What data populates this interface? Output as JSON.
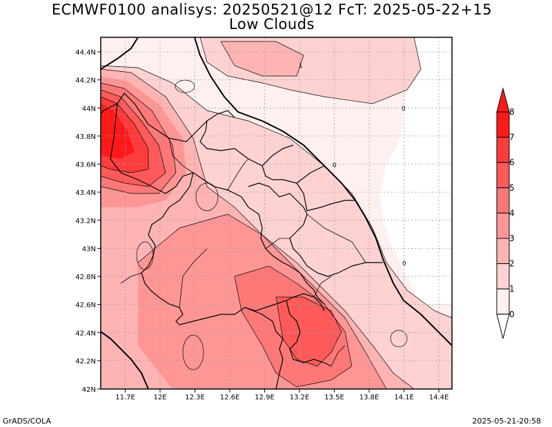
{
  "title": "ECMWF0100 analisys: 20250521@12 FcT: 2025-05-22+15",
  "subtitle": "Low Clouds",
  "footer_left": "GrADS/COLA",
  "footer_right": "2025-05-21-20:58",
  "map": {
    "lon_labels": [
      "11.7E",
      "12E",
      "12.3E",
      "12.6E",
      "12.9E",
      "13.2E",
      "13.5E",
      "13.8E",
      "14.1E",
      "14.4E"
    ],
    "lat_labels": [
      "44.4N",
      "44.2N",
      "44N",
      "43.8N",
      "43.6N",
      "43.4N",
      "43.2N",
      "43N",
      "42.8N",
      "42.6N",
      "42.4N",
      "42.2N",
      "42N"
    ],
    "contour_labels": [
      "1",
      "0"
    ]
  },
  "colorbar": {
    "labels": [
      "8",
      "7",
      "6",
      "5",
      "4",
      "3",
      "2",
      "1",
      "0"
    ],
    "colors": [
      "#ff1a1a",
      "#ff3c3c",
      "#ff5a5a",
      "#ff7878",
      "#ff9696",
      "#ffb4b4",
      "#ffd2d2",
      "#fff0f0"
    ]
  }
}
